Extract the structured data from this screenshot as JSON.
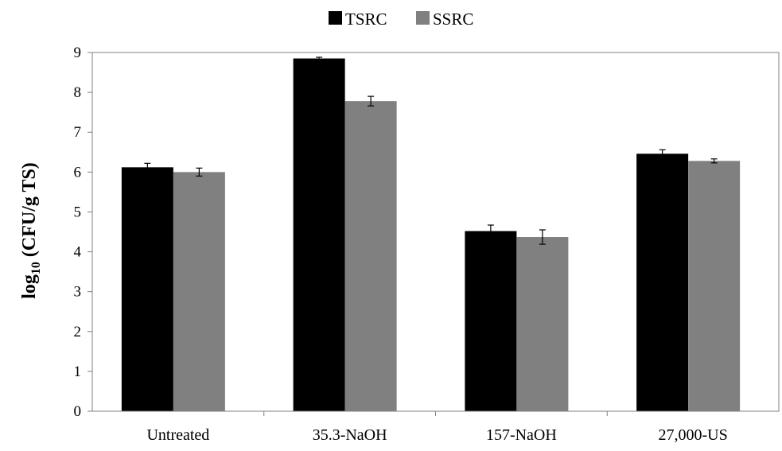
{
  "chart_data": {
    "type": "bar",
    "categories": [
      "Untreated",
      "35.3-NaOH",
      "157-NaOH",
      "27,000-US"
    ],
    "series": [
      {
        "name": "TSRC",
        "values": [
          6.12,
          8.85,
          4.52,
          6.46
        ],
        "errors": [
          0.1,
          0.03,
          0.15,
          0.1
        ],
        "color": "#000000"
      },
      {
        "name": "SSRC",
        "values": [
          6.0,
          7.78,
          4.37,
          6.28
        ],
        "errors": [
          0.1,
          0.12,
          0.18,
          0.05
        ],
        "color": "#808080"
      }
    ],
    "ylabel": {
      "prefix": "log",
      "subscript": "10",
      "suffix": " (CFU/g TS)"
    },
    "ylim": [
      0,
      9
    ],
    "yticks": [
      "0",
      "1",
      "2",
      "3",
      "4",
      "5",
      "6",
      "7",
      "8",
      "9"
    ],
    "grid": false,
    "legend": "top-center"
  }
}
